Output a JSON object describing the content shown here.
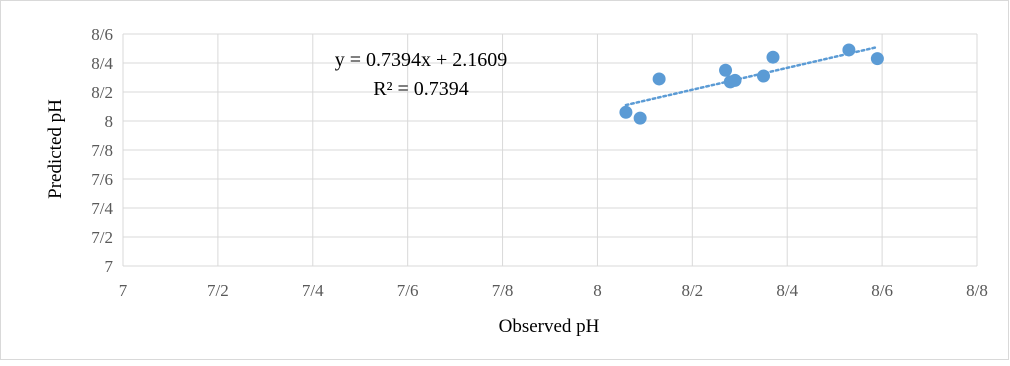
{
  "chart_data": {
    "type": "scatter",
    "title": "",
    "xlabel": "Observed pH",
    "ylabel": "Predicted pH",
    "x_ticks": [
      "7",
      "7/2",
      "7/4",
      "7/6",
      "7/8",
      "8",
      "8/2",
      "8/4",
      "8/6",
      "8/8"
    ],
    "y_ticks": [
      "7",
      "7/2",
      "7/4",
      "7/6",
      "7/8",
      "8",
      "8/2",
      "8/4",
      "8/6"
    ],
    "xlim": [
      7.0,
      8.8
    ],
    "ylim": [
      7.0,
      8.6
    ],
    "grid": true,
    "legend": "none",
    "series": [
      {
        "points": [
          {
            "x": 8.06,
            "y": 8.06
          },
          {
            "x": 8.09,
            "y": 8.02
          },
          {
            "x": 8.13,
            "y": 8.29
          },
          {
            "x": 8.27,
            "y": 8.35
          },
          {
            "x": 8.28,
            "y": 8.27
          },
          {
            "x": 8.29,
            "y": 8.28
          },
          {
            "x": 8.35,
            "y": 8.31
          },
          {
            "x": 8.37,
            "y": 8.44
          },
          {
            "x": 8.53,
            "y": 8.49
          },
          {
            "x": 8.59,
            "y": 8.43
          }
        ]
      }
    ],
    "trendline": {
      "type": "linear",
      "x_range": [
        8.06,
        8.59
      ],
      "y_range": [
        8.11,
        8.51
      ]
    },
    "annotations": {
      "equation": "y = 0.7394x + 2.1609",
      "r_squared": "R² = 0.7394"
    },
    "colors": {
      "points": "#5b9bd5",
      "trendline": "#5b9bd5",
      "grid": "#d9d9d9",
      "axis_text": "#595959",
      "label_text": "#000000"
    }
  }
}
